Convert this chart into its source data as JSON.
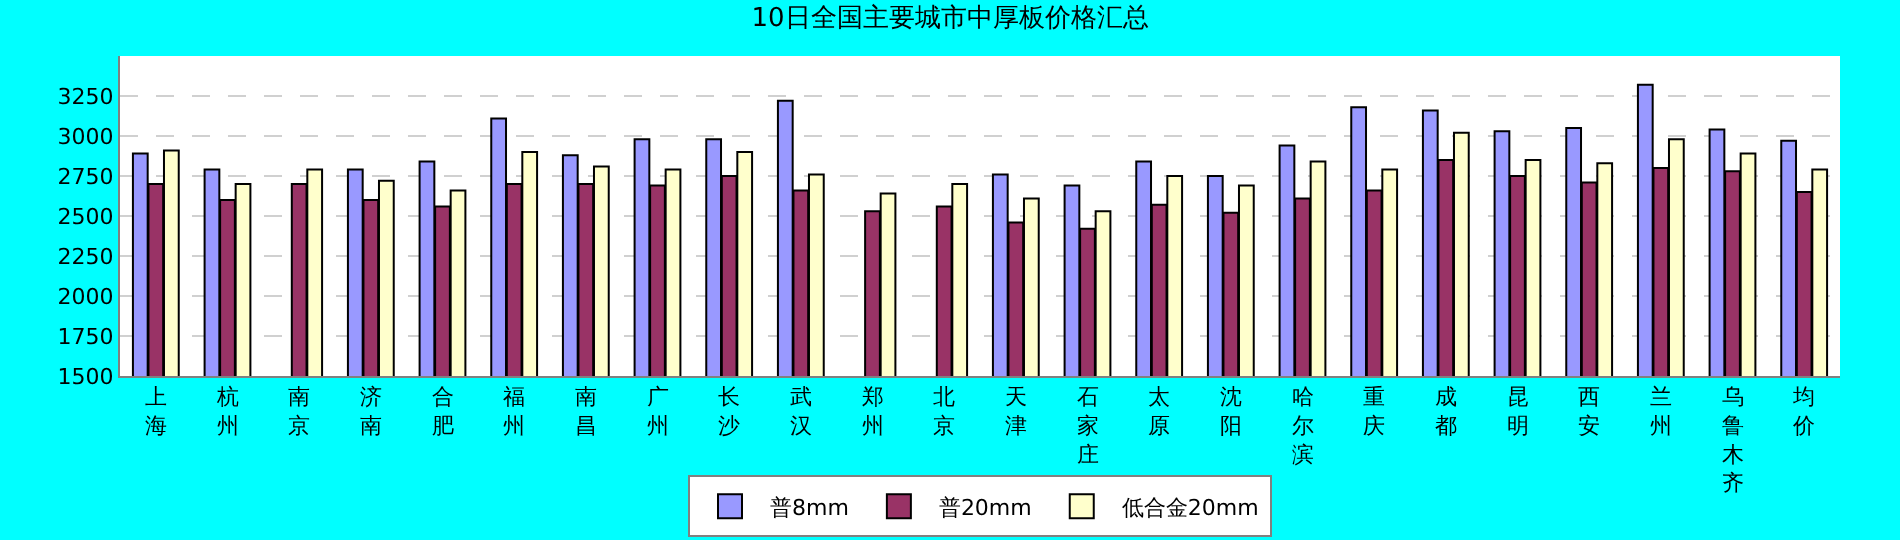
{
  "chart_data": {
    "type": "bar",
    "title": "10日全国主要城市中厚板价格汇总",
    "categories": [
      "上海",
      "杭州",
      "南京",
      "济南",
      "合肥",
      "福州",
      "南昌",
      "广州",
      "长沙",
      "武汉",
      "郑州",
      "北京",
      "天津",
      "石家庄",
      "太原",
      "沈阳",
      "哈尔滨",
      "重庆",
      "成都",
      "昆明",
      "西安",
      "兰州",
      "乌鲁木齐",
      "均价"
    ],
    "series": [
      {
        "name": "普8mm",
        "color": "#9999ff",
        "values": [
          2890,
          2790,
          null,
          2790,
          2840,
          3110,
          2880,
          2980,
          2980,
          3220,
          null,
          null,
          2760,
          2690,
          2840,
          2750,
          2940,
          3180,
          3160,
          3030,
          3050,
          3320,
          3040,
          2970
        ]
      },
      {
        "name": "普20mm",
        "color": "#993366",
        "values": [
          2700,
          2600,
          2700,
          2600,
          2560,
          2700,
          2700,
          2690,
          2750,
          2660,
          2530,
          2560,
          2460,
          2420,
          2570,
          2520,
          2610,
          2660,
          2850,
          2750,
          2710,
          2800,
          2780,
          2650
        ]
      },
      {
        "name": "低合金20mm",
        "color": "#ffffcc",
        "values": [
          2910,
          2700,
          2790,
          2720,
          2660,
          2900,
          2810,
          2790,
          2900,
          2760,
          2640,
          2700,
          2610,
          2530,
          2750,
          2690,
          2840,
          2790,
          3020,
          2850,
          2830,
          2980,
          2890,
          2790
        ]
      }
    ],
    "ylim": [
      1500,
      3500
    ],
    "yticks": [
      1500,
      1750,
      2000,
      2250,
      2500,
      2750,
      3000,
      3250
    ],
    "grid": "y",
    "legend": "bottom"
  }
}
